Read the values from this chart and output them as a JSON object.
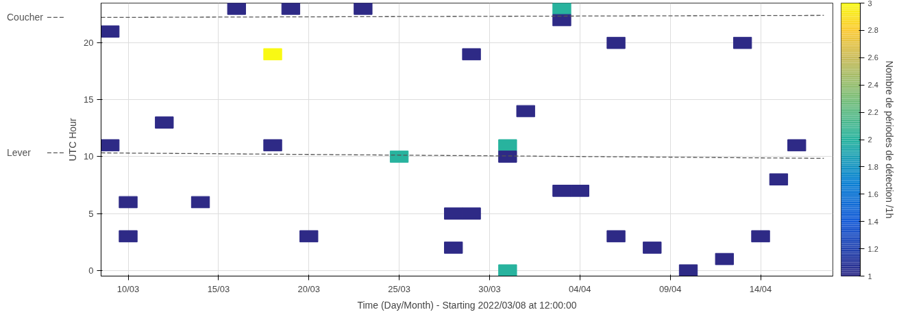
{
  "chart_data": {
    "type": "scatter",
    "legend": "left",
    "xlabel": "Time (Day/Month) - Starting 2022/03/08 at 12:00:00",
    "ylabel": "UTC Hour",
    "clabel": "Nombre de périodes de détection /1h",
    "xlim": [
      "2022-03-08T12:00",
      "2022-04-18T00:00"
    ],
    "xticks": [
      {
        "value": "2022-03-10",
        "label": "10/03"
      },
      {
        "value": "2022-03-15",
        "label": "15/03"
      },
      {
        "value": "2022-03-20",
        "label": "20/03"
      },
      {
        "value": "2022-03-25",
        "label": "25/03"
      },
      {
        "value": "2022-03-30",
        "label": "30/03"
      },
      {
        "value": "2022-04-04",
        "label": "04/04"
      },
      {
        "value": "2022-04-09",
        "label": "09/04"
      },
      {
        "value": "2022-04-14",
        "label": "14/04"
      }
    ],
    "ylim": [
      -0.5,
      23.5
    ],
    "yticks": [
      0,
      5,
      10,
      15,
      20
    ],
    "grid": true,
    "clim": [
      1,
      3
    ],
    "cticks": [
      1,
      1.2,
      1.4,
      1.6,
      1.8,
      2,
      2.2,
      2.4,
      2.6,
      2.8,
      3
    ],
    "series": [
      {
        "marker": "square",
        "x": [
          "2022-03-09",
          "2022-03-09",
          "2022-03-10",
          "2022-03-10",
          "2022-03-12",
          "2022-03-14",
          "2022-03-16",
          "2022-03-18",
          "2022-03-18",
          "2022-03-19",
          "2022-03-20",
          "2022-03-23",
          "2022-03-25",
          "2022-03-28",
          "2022-03-28",
          "2022-03-29",
          "2022-03-29",
          "2022-03-31",
          "2022-03-31",
          "2022-03-31",
          "2022-04-01",
          "2022-04-03",
          "2022-04-03",
          "2022-04-03",
          "2022-04-04",
          "2022-04-06",
          "2022-04-06",
          "2022-04-08",
          "2022-04-10",
          "2022-04-12",
          "2022-04-13",
          "2022-04-14",
          "2022-04-15",
          "2022-04-16"
        ],
        "values": [
          21,
          11,
          6,
          3,
          13,
          6,
          23,
          19,
          11,
          23,
          3,
          23,
          10,
          5,
          2,
          5,
          19,
          11,
          10,
          0,
          14,
          23,
          22,
          7,
          7,
          20,
          3,
          2,
          0,
          1,
          20,
          3,
          8,
          11
        ],
        "cvalues": [
          1,
          1,
          1,
          1,
          1,
          1,
          1,
          3,
          1,
          1,
          1,
          1,
          2,
          1,
          1,
          1,
          1,
          2,
          1,
          2,
          1,
          2,
          1,
          1,
          1,
          1,
          1,
          1,
          1,
          1,
          1,
          1,
          1,
          1
        ],
        "colors": [
          "#2e2a86",
          "#2e2a86",
          "#2e2a86",
          "#2e2a86",
          "#2e2a86",
          "#2e2a86",
          "#2e2a86",
          "#f9f914",
          "#2e2a86",
          "#2e2a86",
          "#2e2a86",
          "#2e2a86",
          "#27b39e",
          "#2e2a86",
          "#2e2a86",
          "#2e2a86",
          "#2e2a86",
          "#27b39e",
          "#2e2a86",
          "#27b39e",
          "#2e2a86",
          "#27b39e",
          "#2e2a86",
          "#2e2a86",
          "#2e2a86",
          "#2e2a86",
          "#2e2a86",
          "#2e2a86",
          "#2e2a86",
          "#2e2a86",
          "#2e2a86",
          "#2e2a86",
          "#2e2a86",
          "#2e2a86"
        ]
      },
      {
        "type": "line",
        "name": "Coucher",
        "color": "#555555",
        "line_style": "dashed",
        "x": [
          "2022-03-08T12:00",
          "2022-04-17T12:00"
        ],
        "values": [
          22.24,
          22.42
        ]
      },
      {
        "type": "line",
        "name": "Lever",
        "color": "#555555",
        "line_style": "dashed",
        "x": [
          "2022-03-08T12:00",
          "2022-04-17T12:00"
        ],
        "values": [
          10.33,
          9.85
        ]
      }
    ]
  }
}
